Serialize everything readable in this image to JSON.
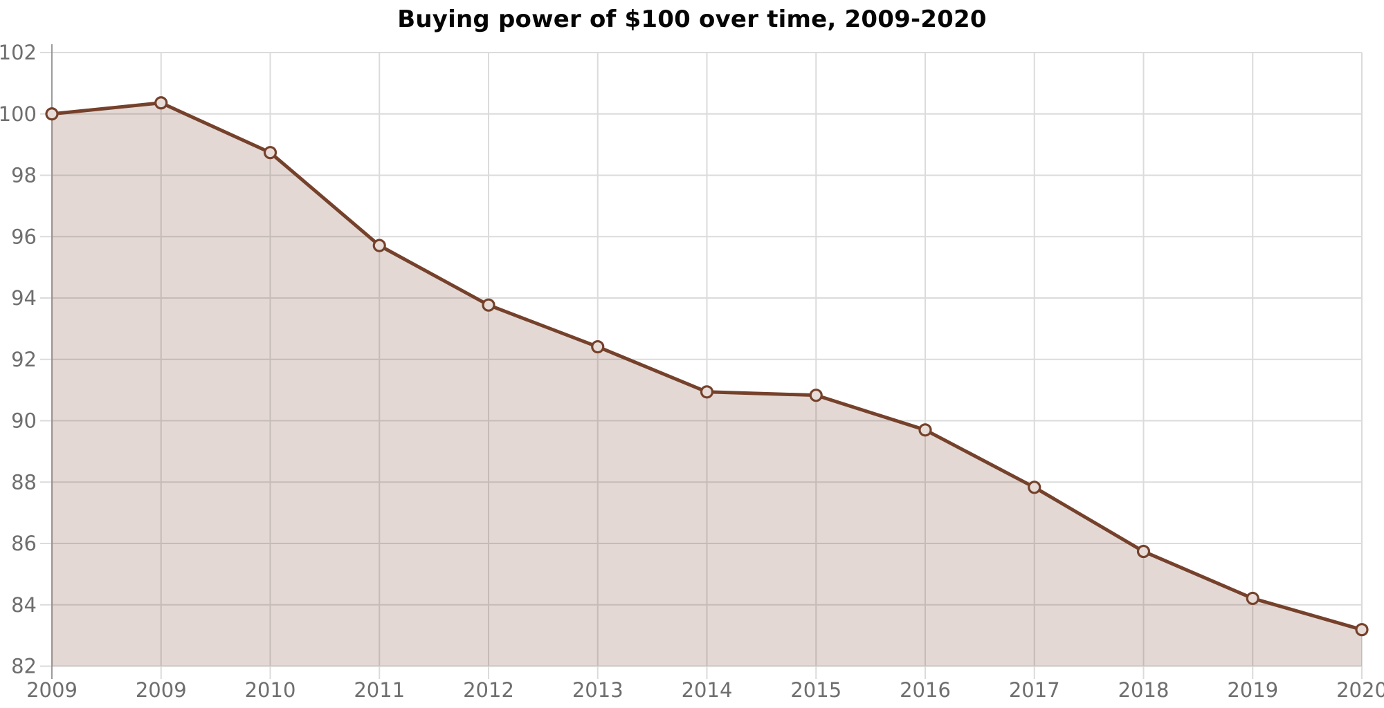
{
  "chart_data": {
    "type": "area",
    "title": "Buying power of $100 over time, 2009-2020",
    "x_labels": [
      "2009",
      "2009",
      "2010",
      "2011",
      "2012",
      "2013",
      "2014",
      "2015",
      "2016",
      "2017",
      "2018",
      "2019",
      "2020"
    ],
    "series": [
      {
        "name": "Buying power of $100",
        "values": [
          100.0,
          100.36,
          98.74,
          95.71,
          93.77,
          92.41,
          90.94,
          90.83,
          89.7,
          87.83,
          85.74,
          84.21,
          83.19
        ]
      }
    ],
    "xlabel": "",
    "ylabel": "",
    "ylim": [
      82,
      102
    ],
    "y_ticks": [
      82,
      84,
      86,
      88,
      90,
      92,
      94,
      96,
      98,
      100,
      102
    ],
    "grid": true,
    "legend_position": "none",
    "marker": "open-circle",
    "colors": {
      "line": "#75412b",
      "fill": "rgba(113, 61, 39, 0.2)",
      "marker_fill": "#e7dcd7",
      "grid": "#dbdbdb",
      "axis": "#9b9b9b",
      "tick_label": "#6e6e6e",
      "title": "#050505"
    }
  }
}
